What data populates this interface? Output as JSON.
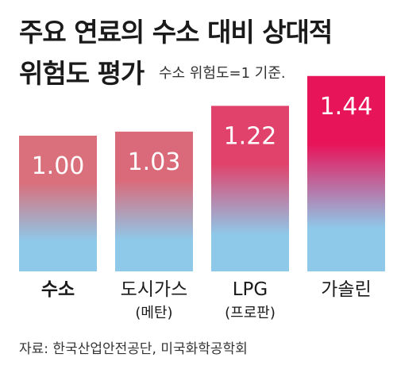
{
  "title": {
    "line1": "주요 연료의 수소 대비 상대적",
    "line2": "위험도 평가",
    "subtitle": "수소 위험도=1 기준."
  },
  "source": "자료: 한국산업안전공단, 미국화학공학회",
  "colors": {
    "bar_bottom": "#8ec9ea",
    "bar_top_low": "#d9707c",
    "bar_top_high": "#e8145a",
    "label_text": "#ffffff"
  },
  "chart_data": {
    "type": "bar",
    "title": "주요 연료의 수소 대비 상대적 위험도 평가",
    "subtitle": "수소 위험도=1 기준.",
    "categories": [
      "수소",
      "도시가스",
      "LPG",
      "가솔린"
    ],
    "category_sublabels": [
      "",
      "(메탄)",
      "(프로판)",
      ""
    ],
    "values": [
      1.0,
      1.03,
      1.22,
      1.44
    ],
    "value_labels": [
      "1.00",
      "1.03",
      "1.22",
      "1.44"
    ],
    "grid": false,
    "legend": "none"
  }
}
